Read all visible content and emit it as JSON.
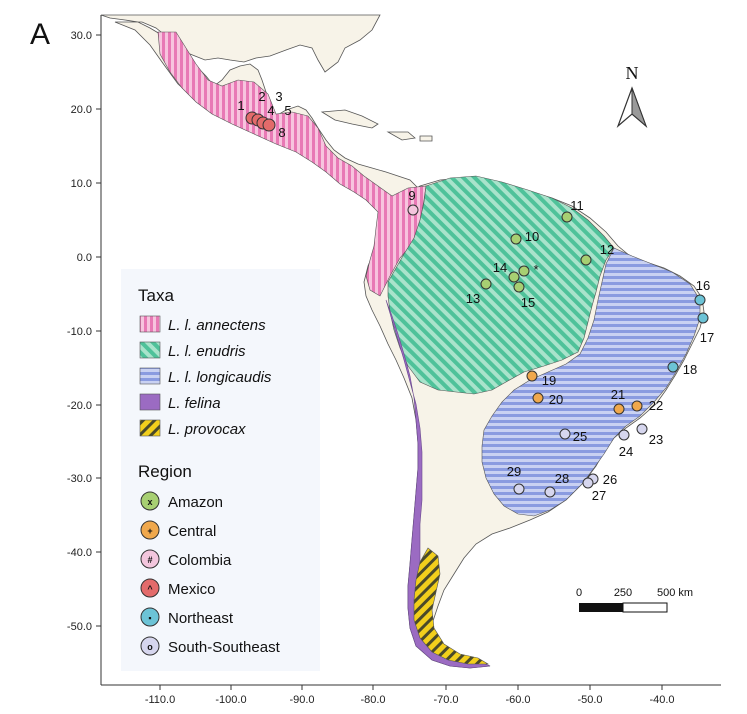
{
  "panel_label": "A",
  "colors": {
    "land": "#f7f3e8",
    "annectens": "#e879b5",
    "enudris": "#4fc29a",
    "longicaudis": "#8a9be0",
    "felina": "#9b6bc2",
    "provocax": "#f2cf1c",
    "amazon": "#a7cf72",
    "central": "#f0a84c",
    "colombia": "#f3c6dd",
    "mexico": "#e36b6b",
    "northeast": "#6cc3d6",
    "south_southeast": "#d6d6ee"
  },
  "axes": {
    "y_ticks": [
      "30.0",
      "20.0",
      "10.0",
      "0.0",
      "-10.0",
      "-20.0",
      "-30.0",
      "-40.0",
      "-50.0"
    ],
    "x_ticks": [
      "-110.0",
      "-100.0",
      "-90.0",
      "-80.0",
      "-70.0",
      "-60.0",
      "-50.0",
      "-40.0"
    ]
  },
  "north_arrow": {
    "label": "N"
  },
  "scale_bar": {
    "labels": [
      "0",
      "250",
      "500 km"
    ]
  },
  "legend": {
    "taxa_title": "Taxa",
    "taxa": [
      {
        "name": "L. l. annectens",
        "icon": "pink-vertical-hatch-icon"
      },
      {
        "name": "L. l. enudris",
        "icon": "green-diagonal-hatch-icon"
      },
      {
        "name": "L. l. longicaudis",
        "icon": "blue-horizontal-hatch-icon"
      },
      {
        "name": "L. felina",
        "icon": "purple-solid-icon"
      },
      {
        "name": "L. provocax",
        "icon": "yellow-diagonal-hatch-icon"
      }
    ],
    "region_title": "Region",
    "regions": [
      {
        "name": "Amazon",
        "symbol": "x",
        "icon": "x-circle-icon"
      },
      {
        "name": "Central",
        "symbol": "+",
        "icon": "plus-circle-icon"
      },
      {
        "name": "Colombia",
        "symbol": "#",
        "icon": "hash-circle-icon"
      },
      {
        "name": "Mexico",
        "symbol": "^",
        "icon": "caret-circle-icon"
      },
      {
        "name": "Northeast",
        "symbol": "▪",
        "icon": "square-circle-icon"
      },
      {
        "name": "South-Southeast",
        "symbol": "o",
        "icon": "ring-circle-icon"
      }
    ]
  },
  "sample_labels": [
    "1",
    "2",
    "3",
    "4",
    "5",
    "8",
    "9",
    "10",
    "11",
    "12",
    "13",
    "14",
    "15",
    "*",
    "16",
    "17",
    "18",
    "19",
    "20",
    "21",
    "22",
    "23",
    "24",
    "25",
    "26",
    "27",
    "28",
    "29"
  ]
}
